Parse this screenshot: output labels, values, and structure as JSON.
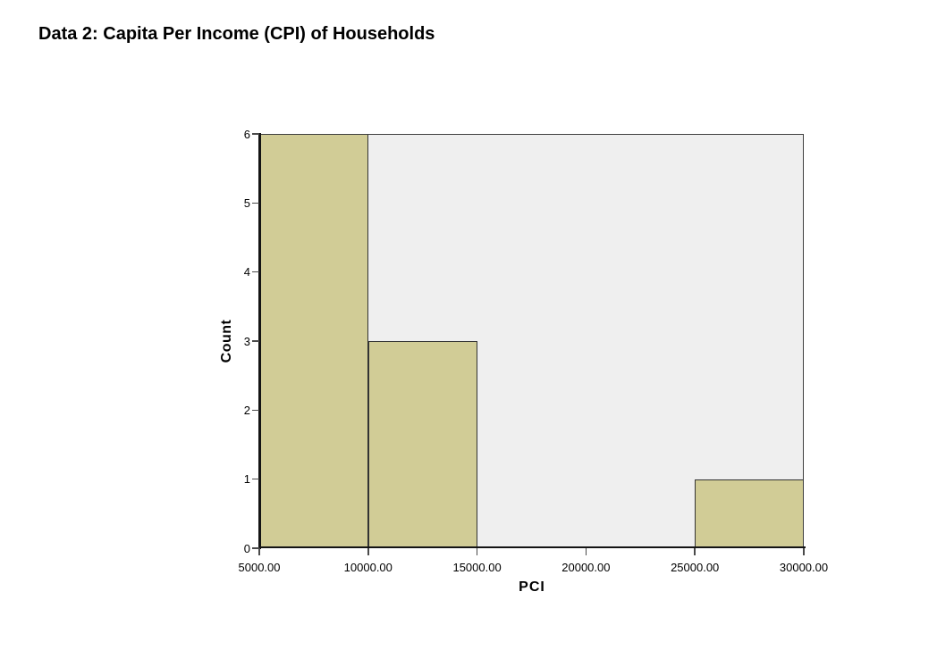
{
  "page": {
    "title": "Data 2: Capita Per Income (CPI) of Households"
  },
  "chart_data": {
    "type": "bar",
    "variant": "histogram",
    "title": "Data 2: Capita Per Income (CPI) of Households",
    "xlabel": "PCI",
    "ylabel": "Count",
    "xlim": [
      5000,
      30000
    ],
    "ylim": [
      0,
      6
    ],
    "grid": false,
    "legend": "none",
    "x_ticks": [
      {
        "value": 5000,
        "label": "5000.00"
      },
      {
        "value": 10000,
        "label": "10000.00"
      },
      {
        "value": 15000,
        "label": "15000.00"
      },
      {
        "value": 20000,
        "label": "20000.00"
      },
      {
        "value": 25000,
        "label": "25000.00"
      },
      {
        "value": 30000,
        "label": "30000.00"
      }
    ],
    "y_ticks": [
      {
        "value": 0,
        "label": "0"
      },
      {
        "value": 1,
        "label": "1"
      },
      {
        "value": 2,
        "label": "2"
      },
      {
        "value": 3,
        "label": "3"
      },
      {
        "value": 4,
        "label": "4"
      },
      {
        "value": 5,
        "label": "5"
      },
      {
        "value": 6,
        "label": "6"
      }
    ],
    "bins": [
      {
        "x0": 5000,
        "x1": 10000,
        "count": 6
      },
      {
        "x0": 10000,
        "x1": 15000,
        "count": 3
      },
      {
        "x0": 15000,
        "x1": 20000,
        "count": 0
      },
      {
        "x0": 20000,
        "x1": 25000,
        "count": 0
      },
      {
        "x0": 25000,
        "x1": 30000,
        "count": 1
      }
    ],
    "colors": {
      "bar_fill": "#d1cc96",
      "bar_border": "#333333",
      "plot_background": "#efefef",
      "plot_border": "#3f3f3f",
      "axis_line": "#141414",
      "tick_mark": "#4a4a4a",
      "label_text": "#000000"
    }
  }
}
